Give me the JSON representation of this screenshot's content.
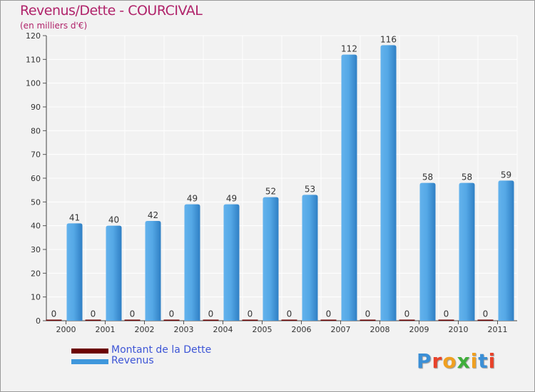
{
  "title": "Revenus/Dette - COURCIVAL",
  "subtitle": "(en milliers d'€)",
  "chart_data": {
    "type": "bar",
    "categories": [
      "2000",
      "2001",
      "2002",
      "2003",
      "2004",
      "2005",
      "2006",
      "2007",
      "2008",
      "2009",
      "2010",
      "2011"
    ],
    "series": [
      {
        "name": "Montant de la Dette",
        "color": "#6b0000",
        "values": [
          0,
          0,
          0,
          0,
          0,
          0,
          0,
          0,
          0,
          0,
          0,
          0
        ]
      },
      {
        "name": "Revenus",
        "color": "#3f97dc",
        "values": [
          41,
          40,
          42,
          49,
          49,
          52,
          53,
          112,
          116,
          58,
          58,
          59
        ]
      }
    ],
    "ylim": [
      0,
      120
    ],
    "yticks": [
      0,
      10,
      20,
      30,
      40,
      50,
      60,
      70,
      80,
      90,
      100,
      110,
      120
    ],
    "grid": true,
    "legend_position": "bottom-left"
  },
  "legend": {
    "items": [
      {
        "label": "Montant de la Dette",
        "color": "#6b0000"
      },
      {
        "label": "Revenus",
        "color": "#3f97dc"
      }
    ]
  },
  "logo": {
    "text": "Proxiti"
  }
}
